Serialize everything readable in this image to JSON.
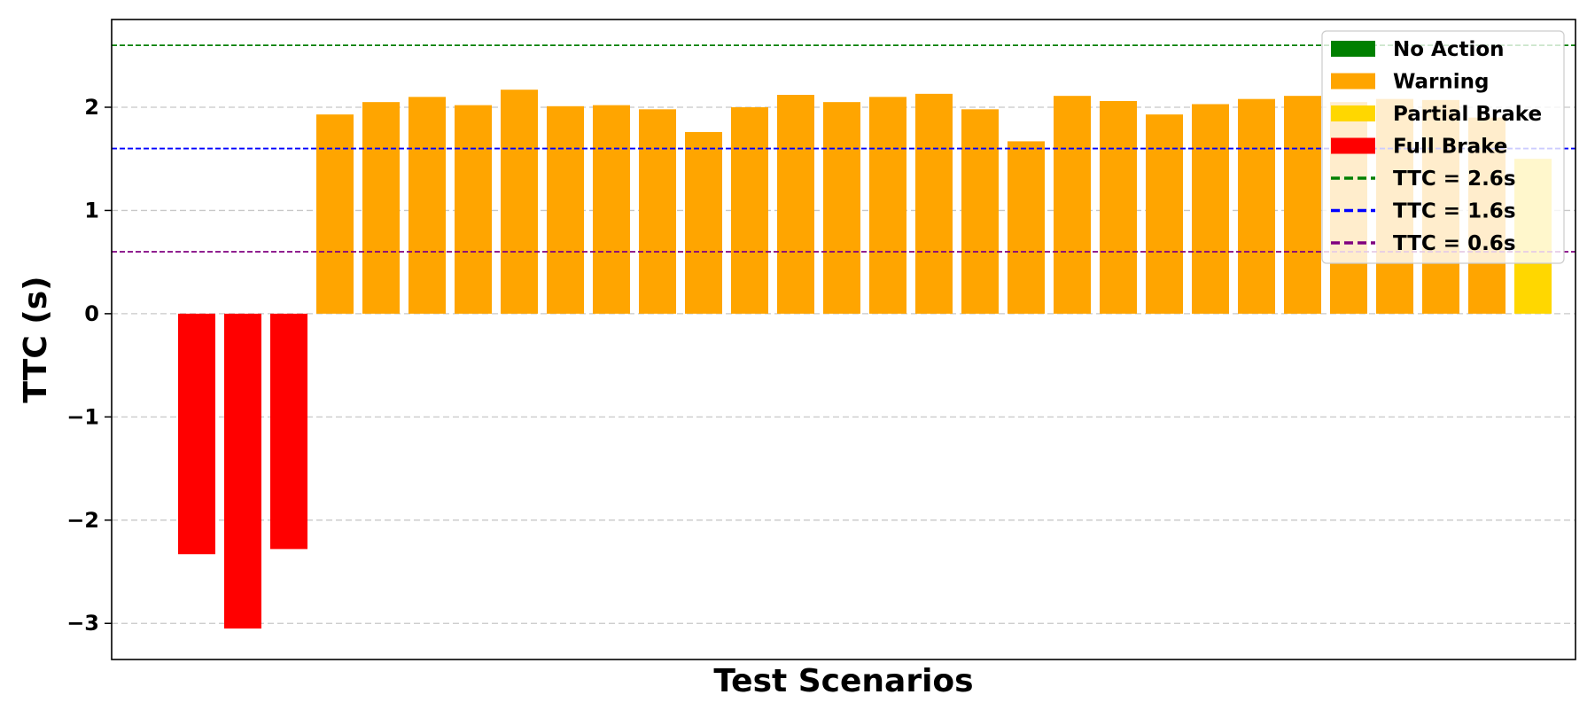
{
  "chart_data": {
    "type": "bar",
    "title": "",
    "xlabel": "Test Scenarios",
    "ylabel": "TTC (s)",
    "ylim": [
      -3.35,
      2.85
    ],
    "yticks": [
      -3,
      -2,
      -1,
      0,
      1,
      2
    ],
    "ytick_labels": [
      "−3",
      "−2",
      "−1",
      "0",
      "1",
      "2"
    ],
    "grid": "horizontal dashed",
    "legend_position": "top-right",
    "categories": [
      "Full Brake",
      "Full Brake",
      "Full Brake",
      "Warning",
      "Warning",
      "Warning",
      "Warning",
      "Warning",
      "Warning",
      "Warning",
      "Warning",
      "Warning",
      "Warning",
      "Warning",
      "Warning",
      "Warning",
      "Warning",
      "Warning",
      "Warning",
      "Warning",
      "Warning",
      "Warning",
      "Warning",
      "Warning",
      "Warning",
      "Warning",
      "Warning",
      "Warning",
      "Warning",
      "Partial Brake"
    ],
    "values": [
      -2.33,
      -3.05,
      -2.28,
      1.93,
      2.05,
      2.1,
      2.02,
      2.17,
      2.01,
      2.02,
      1.98,
      1.76,
      2.0,
      2.12,
      2.05,
      2.1,
      2.13,
      1.98,
      1.67,
      2.11,
      2.06,
      1.93,
      2.03,
      2.08,
      2.11,
      2.05,
      2.08,
      2.07,
      1.9,
      1.5
    ],
    "category_colors": {
      "No Action": "#008000",
      "Warning": "#FFA500",
      "Partial Brake": "#FFD700",
      "Full Brake": "#FF0000"
    },
    "thresholds": [
      {
        "label": "TTC = 2.6s",
        "value": 2.6,
        "color": "#008000"
      },
      {
        "label": "TTC = 1.6s",
        "value": 1.6,
        "color": "#0000FF"
      },
      {
        "label": "TTC = 0.6s",
        "value": 0.6,
        "color": "#800080"
      }
    ],
    "legend": [
      {
        "label": "No Action",
        "kind": "patch",
        "color": "#008000"
      },
      {
        "label": "Warning",
        "kind": "patch",
        "color": "#FFA500"
      },
      {
        "label": "Partial Brake",
        "kind": "patch",
        "color": "#FFD700"
      },
      {
        "label": "Full Brake",
        "kind": "patch",
        "color": "#FF0000"
      },
      {
        "label": "TTC = 2.6s",
        "kind": "line",
        "color": "#008000"
      },
      {
        "label": "TTC = 1.6s",
        "kind": "line",
        "color": "#0000FF"
      },
      {
        "label": "TTC = 0.6s",
        "kind": "line",
        "color": "#800080"
      }
    ]
  }
}
